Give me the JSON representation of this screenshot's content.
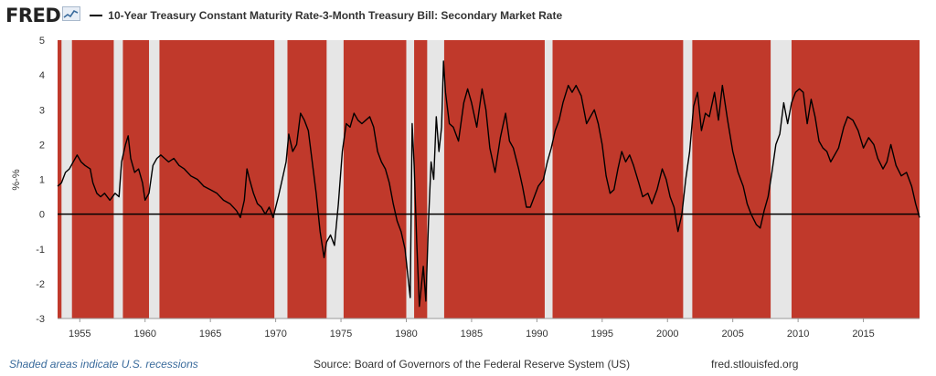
{
  "header": {
    "logo_text": "FRED",
    "logo_icon": "chart-sparkline-icon",
    "series_title": "10-Year Treasury Constant Maturity Rate-3-Month Treasury Bill: Secondary Market Rate"
  },
  "footer": {
    "recession_note": "Shaded areas indicate U.S. recessions",
    "source": "Source: Board of Governors of the Federal Reserve System (US)",
    "site": "fred.stlouisfed.org"
  },
  "colors": {
    "fill": "#c0392b",
    "recession": "#e6e6e6",
    "line": "#000000",
    "zero_line": "#000000"
  },
  "chart_data": {
    "type": "area",
    "ylabel": "%-%",
    "xlabel": "",
    "xlim": [
      1953.3,
      2019.3
    ],
    "ylim": [
      -3,
      5
    ],
    "yticks": [
      -3,
      -2,
      -1,
      0,
      1,
      2,
      3,
      4,
      5
    ],
    "xticks": [
      1955,
      1960,
      1965,
      1970,
      1975,
      1980,
      1985,
      1990,
      1995,
      2000,
      2005,
      2010,
      2015
    ],
    "recessions": [
      [
        1953.6,
        1954.4
      ],
      [
        1957.6,
        1958.3
      ],
      [
        1960.3,
        1961.1
      ],
      [
        1969.9,
        1970.9
      ],
      [
        1973.9,
        1975.2
      ],
      [
        1980.0,
        1980.6
      ],
      [
        1981.6,
        1982.9
      ],
      [
        1990.6,
        1991.2
      ],
      [
        2001.2,
        2001.9
      ],
      [
        2007.9,
        2009.5
      ]
    ],
    "series": [
      {
        "values": [
          [
            1953.3,
            0.8
          ],
          [
            1953.6,
            0.9
          ],
          [
            1953.9,
            1.2
          ],
          [
            1954.2,
            1.3
          ],
          [
            1954.5,
            1.5
          ],
          [
            1954.8,
            1.7
          ],
          [
            1955.1,
            1.5
          ],
          [
            1955.4,
            1.4
          ],
          [
            1955.8,
            1.3
          ],
          [
            1956.0,
            0.9
          ],
          [
            1956.3,
            0.6
          ],
          [
            1956.6,
            0.5
          ],
          [
            1956.9,
            0.6
          ],
          [
            1957.3,
            0.4
          ],
          [
            1957.7,
            0.6
          ],
          [
            1958.0,
            0.5
          ],
          [
            1958.2,
            1.5
          ],
          [
            1958.5,
            2.0
          ],
          [
            1958.7,
            2.25
          ],
          [
            1958.9,
            1.6
          ],
          [
            1959.2,
            1.2
          ],
          [
            1959.5,
            1.3
          ],
          [
            1959.8,
            0.9
          ],
          [
            1960.0,
            0.4
          ],
          [
            1960.3,
            0.6
          ],
          [
            1960.6,
            1.4
          ],
          [
            1960.9,
            1.6
          ],
          [
            1961.2,
            1.7
          ],
          [
            1961.5,
            1.6
          ],
          [
            1961.8,
            1.5
          ],
          [
            1962.2,
            1.6
          ],
          [
            1962.6,
            1.4
          ],
          [
            1963.0,
            1.3
          ],
          [
            1963.5,
            1.1
          ],
          [
            1964.0,
            1.0
          ],
          [
            1964.5,
            0.8
          ],
          [
            1965.0,
            0.7
          ],
          [
            1965.5,
            0.6
          ],
          [
            1966.0,
            0.4
          ],
          [
            1966.5,
            0.3
          ],
          [
            1967.0,
            0.1
          ],
          [
            1967.3,
            -0.1
          ],
          [
            1967.6,
            0.4
          ],
          [
            1967.8,
            1.3
          ],
          [
            1968.0,
            1.0
          ],
          [
            1968.3,
            0.6
          ],
          [
            1968.6,
            0.3
          ],
          [
            1968.9,
            0.2
          ],
          [
            1969.2,
            0.0
          ],
          [
            1969.5,
            0.2
          ],
          [
            1969.8,
            -0.1
          ],
          [
            1970.2,
            0.5
          ],
          [
            1970.5,
            1.0
          ],
          [
            1970.8,
            1.5
          ],
          [
            1971.0,
            2.3
          ],
          [
            1971.3,
            1.8
          ],
          [
            1971.6,
            2.0
          ],
          [
            1971.9,
            2.9
          ],
          [
            1972.2,
            2.7
          ],
          [
            1972.5,
            2.4
          ],
          [
            1972.8,
            1.5
          ],
          [
            1973.1,
            0.6
          ],
          [
            1973.4,
            -0.5
          ],
          [
            1973.7,
            -1.25
          ],
          [
            1973.9,
            -0.8
          ],
          [
            1974.2,
            -0.6
          ],
          [
            1974.5,
            -0.9
          ],
          [
            1974.8,
            0.3
          ],
          [
            1975.1,
            1.8
          ],
          [
            1975.4,
            2.6
          ],
          [
            1975.7,
            2.5
          ],
          [
            1976.0,
            2.9
          ],
          [
            1976.3,
            2.7
          ],
          [
            1976.6,
            2.6
          ],
          [
            1976.9,
            2.7
          ],
          [
            1977.2,
            2.8
          ],
          [
            1977.5,
            2.5
          ],
          [
            1977.8,
            1.8
          ],
          [
            1978.1,
            1.5
          ],
          [
            1978.4,
            1.3
          ],
          [
            1978.7,
            0.9
          ],
          [
            1979.0,
            0.3
          ],
          [
            1979.3,
            -0.2
          ],
          [
            1979.6,
            -0.5
          ],
          [
            1979.9,
            -1.0
          ],
          [
            1980.1,
            -1.7
          ],
          [
            1980.3,
            -2.4
          ],
          [
            1980.45,
            2.6
          ],
          [
            1980.6,
            1.4
          ],
          [
            1980.8,
            -0.8
          ],
          [
            1981.0,
            -2.65
          ],
          [
            1981.3,
            -1.5
          ],
          [
            1981.5,
            -2.5
          ],
          [
            1981.7,
            -0.2
          ],
          [
            1981.9,
            1.5
          ],
          [
            1982.1,
            1.0
          ],
          [
            1982.3,
            2.8
          ],
          [
            1982.5,
            1.8
          ],
          [
            1982.7,
            2.5
          ],
          [
            1982.85,
            4.4
          ],
          [
            1983.0,
            3.5
          ],
          [
            1983.3,
            2.6
          ],
          [
            1983.6,
            2.5
          ],
          [
            1984.0,
            2.1
          ],
          [
            1984.4,
            3.2
          ],
          [
            1984.7,
            3.6
          ],
          [
            1985.0,
            3.2
          ],
          [
            1985.4,
            2.5
          ],
          [
            1985.8,
            3.6
          ],
          [
            1986.1,
            3.0
          ],
          [
            1986.4,
            1.9
          ],
          [
            1986.8,
            1.2
          ],
          [
            1987.2,
            2.2
          ],
          [
            1987.6,
            2.9
          ],
          [
            1987.9,
            2.1
          ],
          [
            1988.2,
            1.9
          ],
          [
            1988.6,
            1.3
          ],
          [
            1988.9,
            0.8
          ],
          [
            1989.2,
            0.2
          ],
          [
            1989.5,
            0.2
          ],
          [
            1989.8,
            0.5
          ],
          [
            1990.1,
            0.8
          ],
          [
            1990.5,
            1.0
          ],
          [
            1990.8,
            1.5
          ],
          [
            1991.1,
            1.9
          ],
          [
            1991.4,
            2.4
          ],
          [
            1991.7,
            2.7
          ],
          [
            1992.0,
            3.2
          ],
          [
            1992.4,
            3.7
          ],
          [
            1992.7,
            3.5
          ],
          [
            1993.0,
            3.7
          ],
          [
            1993.4,
            3.4
          ],
          [
            1993.8,
            2.6
          ],
          [
            1994.1,
            2.8
          ],
          [
            1994.4,
            3.0
          ],
          [
            1994.7,
            2.6
          ],
          [
            1995.0,
            2.0
          ],
          [
            1995.3,
            1.1
          ],
          [
            1995.6,
            0.6
          ],
          [
            1995.9,
            0.7
          ],
          [
            1996.2,
            1.3
          ],
          [
            1996.5,
            1.8
          ],
          [
            1996.8,
            1.5
          ],
          [
            1997.1,
            1.7
          ],
          [
            1997.4,
            1.4
          ],
          [
            1997.8,
            0.9
          ],
          [
            1998.1,
            0.5
          ],
          [
            1998.5,
            0.6
          ],
          [
            1998.8,
            0.3
          ],
          [
            1999.2,
            0.7
          ],
          [
            1999.6,
            1.3
          ],
          [
            1999.9,
            1.0
          ],
          [
            2000.2,
            0.5
          ],
          [
            2000.5,
            0.2
          ],
          [
            2000.8,
            -0.5
          ],
          [
            2001.1,
            0.0
          ],
          [
            2001.4,
            1.0
          ],
          [
            2001.7,
            1.8
          ],
          [
            2002.0,
            3.1
          ],
          [
            2002.3,
            3.5
          ],
          [
            2002.6,
            2.4
          ],
          [
            2002.9,
            2.9
          ],
          [
            2003.2,
            2.8
          ],
          [
            2003.6,
            3.5
          ],
          [
            2003.9,
            2.7
          ],
          [
            2004.2,
            3.7
          ],
          [
            2004.6,
            2.7
          ],
          [
            2005.0,
            1.8
          ],
          [
            2005.4,
            1.2
          ],
          [
            2005.8,
            0.8
          ],
          [
            2006.1,
            0.3
          ],
          [
            2006.4,
            0.0
          ],
          [
            2006.8,
            -0.3
          ],
          [
            2007.1,
            -0.4
          ],
          [
            2007.4,
            0.1
          ],
          [
            2007.7,
            0.5
          ],
          [
            2008.0,
            1.2
          ],
          [
            2008.3,
            2.0
          ],
          [
            2008.6,
            2.3
          ],
          [
            2008.9,
            3.2
          ],
          [
            2009.2,
            2.6
          ],
          [
            2009.5,
            3.2
          ],
          [
            2009.8,
            3.5
          ],
          [
            2010.1,
            3.6
          ],
          [
            2010.4,
            3.5
          ],
          [
            2010.7,
            2.6
          ],
          [
            2011.0,
            3.3
          ],
          [
            2011.3,
            2.8
          ],
          [
            2011.6,
            2.1
          ],
          [
            2011.9,
            1.9
          ],
          [
            2012.2,
            1.8
          ],
          [
            2012.5,
            1.5
          ],
          [
            2012.8,
            1.7
          ],
          [
            2013.1,
            1.9
          ],
          [
            2013.5,
            2.5
          ],
          [
            2013.8,
            2.8
          ],
          [
            2014.2,
            2.7
          ],
          [
            2014.6,
            2.4
          ],
          [
            2015.0,
            1.9
          ],
          [
            2015.4,
            2.2
          ],
          [
            2015.8,
            2.0
          ],
          [
            2016.1,
            1.6
          ],
          [
            2016.5,
            1.3
          ],
          [
            2016.8,
            1.5
          ],
          [
            2017.1,
            2.0
          ],
          [
            2017.5,
            1.4
          ],
          [
            2017.9,
            1.1
          ],
          [
            2018.3,
            1.2
          ],
          [
            2018.7,
            0.8
          ],
          [
            2019.0,
            0.3
          ],
          [
            2019.3,
            -0.1
          ]
        ]
      }
    ]
  }
}
